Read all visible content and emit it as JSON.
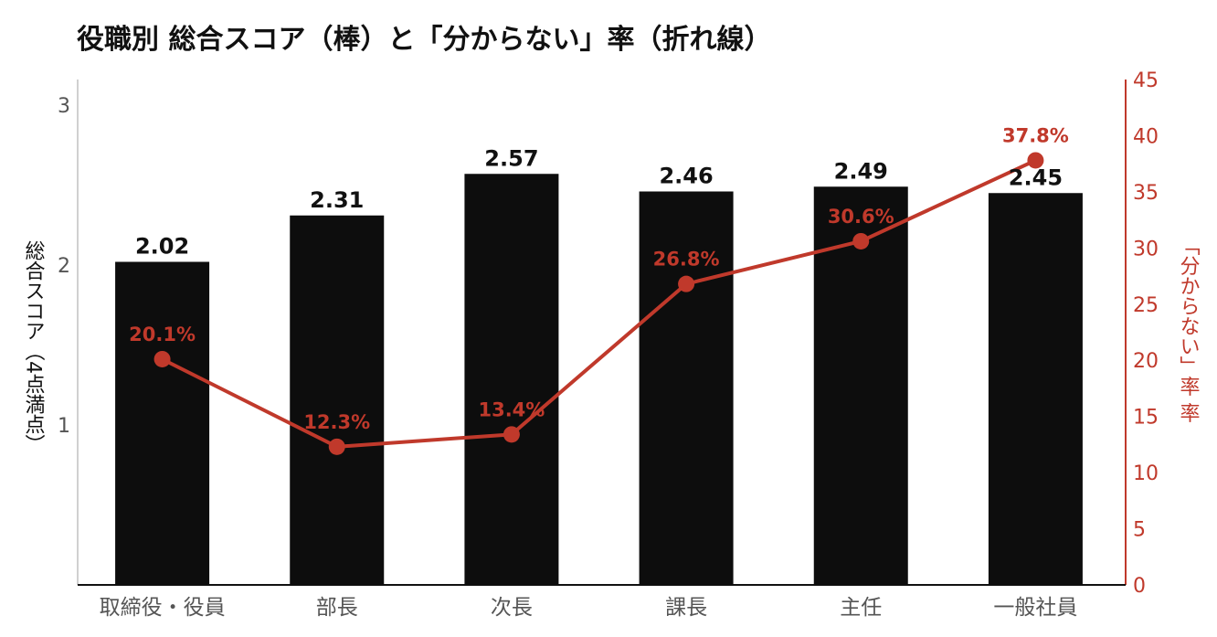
{
  "chart_data": {
    "type": "bar+line",
    "title": "役職別 総合スコア（棒）と「分からない」率（折れ線）",
    "categories": [
      "取締役・役員",
      "部長",
      "次長",
      "課長",
      "主任",
      "一般社員"
    ],
    "series": [
      {
        "name": "総合スコア",
        "type": "bar",
        "axis": "left",
        "values": [
          2.02,
          2.31,
          2.57,
          2.46,
          2.49,
          2.45
        ],
        "labels": [
          "2.02",
          "2.31",
          "2.57",
          "2.46",
          "2.49",
          "2.45"
        ]
      },
      {
        "name": "「分からない」率",
        "type": "line",
        "axis": "right",
        "values": [
          20.1,
          12.3,
          13.4,
          26.8,
          30.6,
          37.8
        ],
        "labels": [
          "20.1%",
          "12.3%",
          "13.4%",
          "26.8%",
          "30.6%",
          "37.8%"
        ]
      }
    ],
    "y_left": {
      "label": "総合スコア（4点満点）",
      "ticks": [
        "1",
        "2",
        "3"
      ],
      "ylim": [
        0,
        3.15
      ]
    },
    "y_right": {
      "label": "「分からない」率",
      "ticks": [
        "0",
        "5",
        "10",
        "15",
        "20",
        "25",
        "30",
        "35",
        "40",
        "45"
      ],
      "ylim": [
        0,
        45
      ]
    },
    "colors": {
      "bar": "#0d0d0d",
      "line": "#c0392b",
      "axis_left": "#d0d0d0",
      "axis_right": "#c0392b",
      "tick_left": "#555555",
      "category": "#555555"
    }
  }
}
